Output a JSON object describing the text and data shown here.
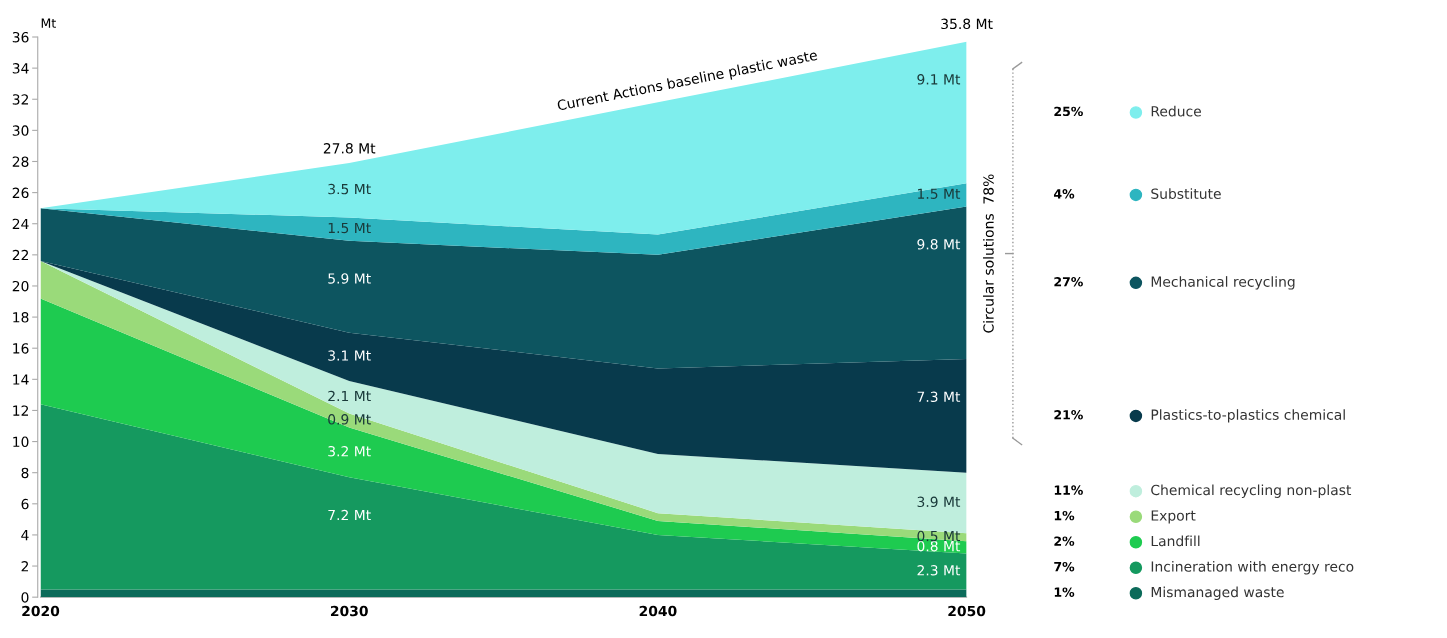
{
  "chart_data": {
    "type": "area",
    "stacked": true,
    "x": [
      2020,
      2030,
      2040,
      2050
    ],
    "xlim": [
      2020,
      2050
    ],
    "xticks": [
      2020,
      2030,
      2040,
      2050
    ],
    "ylim": [
      0,
      36
    ],
    "yticks": [
      0,
      2,
      4,
      6,
      8,
      10,
      12,
      14,
      16,
      18,
      20,
      22,
      24,
      26,
      28,
      30,
      32,
      34,
      36
    ],
    "ylabel": "Mt",
    "grid": false,
    "legend": "right",
    "series": [
      {
        "name": "Mismanaged waste",
        "color": "#0c6b5a",
        "values": [
          0.5,
          0.5,
          0.5,
          0.5
        ],
        "value_labels": [
          null,
          null,
          null,
          null
        ]
      },
      {
        "name": "Incineration with energy reco",
        "color": "#15995f",
        "values": [
          11.9,
          7.2,
          3.5,
          2.3
        ],
        "value_labels": [
          null,
          "7.2 Mt",
          null,
          "2.3 Mt"
        ]
      },
      {
        "name": "Landfill",
        "color": "#1ecb50",
        "values": [
          6.8,
          3.2,
          0.9,
          0.8
        ],
        "value_labels": [
          null,
          "3.2 Mt",
          null,
          "0.8 Mt"
        ]
      },
      {
        "name": "Export",
        "color": "#9ada7a",
        "values": [
          2.4,
          0.9,
          0.5,
          0.5
        ],
        "value_labels": [
          null,
          "0.9 Mt",
          null,
          "0.5 Mt"
        ]
      },
      {
        "name": "Chemical recycling non-plast",
        "color": "#bfeedd",
        "values": [
          0,
          2.1,
          3.8,
          3.9
        ],
        "value_labels": [
          null,
          "2.1 Mt",
          null,
          "3.9 Mt"
        ]
      },
      {
        "name": "Plastics-to-plastics chemical",
        "color": "#083a4c",
        "values": [
          0,
          3.1,
          5.5,
          7.3
        ],
        "value_labels": [
          null,
          "3.1 Mt",
          null,
          "7.3 Mt"
        ]
      },
      {
        "name": "Mechanical recycling",
        "color": "#0d5560",
        "values": [
          3.4,
          5.9,
          7.3,
          9.8
        ],
        "value_labels": [
          null,
          "5.9 Mt",
          null,
          "9.8 Mt"
        ]
      },
      {
        "name": "Substitute",
        "color": "#2eb5c0",
        "values": [
          0,
          1.5,
          1.3,
          1.5
        ],
        "value_labels": [
          null,
          "1.5 Mt",
          null,
          "1.5 Mt"
        ]
      },
      {
        "name": "Reduce",
        "color": "#7eeeed",
        "values": [
          0,
          3.5,
          8.5,
          9.1
        ],
        "value_labels": [
          null,
          "3.5 Mt",
          null,
          "9.1 Mt"
        ]
      }
    ],
    "annotations": [
      {
        "text": "27.8 Mt",
        "x": 2030,
        "y": 27.8
      },
      {
        "text": "35.8 Mt",
        "x": 2050,
        "y": 35.8
      },
      "Current Actions baseline plastic waste",
      "Circular solutions  78%",
      "25%",
      "4%",
      "27%",
      "21%",
      "11%",
      "1%",
      "2%",
      "7%",
      "1%"
    ]
  }
}
